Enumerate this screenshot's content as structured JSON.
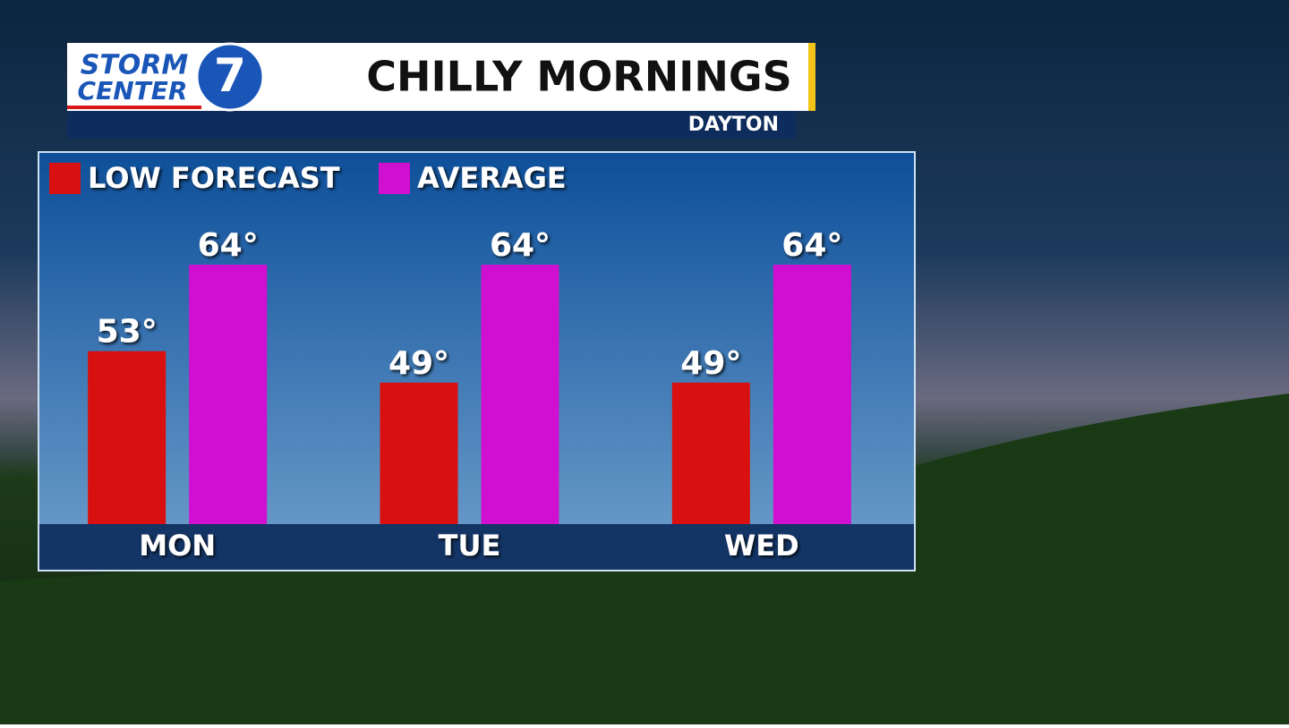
{
  "logo": {
    "line1": "STORM",
    "line2": "CENTER",
    "number": "7"
  },
  "chart_data": {
    "type": "bar",
    "title": "CHILLY MORNINGS",
    "subtitle": "DAYTON",
    "categories": [
      "MON",
      "TUE",
      "WED"
    ],
    "series": [
      {
        "name": "LOW FORECAST",
        "color": "#d91010",
        "values": [
          53,
          49,
          49
        ],
        "value_labels": [
          "53°",
          "49°",
          "49°"
        ]
      },
      {
        "name": "AVERAGE",
        "color": "#d010d0",
        "values": [
          64,
          64,
          64
        ],
        "value_labels": [
          "64°",
          "64°",
          "64°"
        ]
      }
    ],
    "ylim": [
      31,
      64
    ],
    "grid": false
  }
}
